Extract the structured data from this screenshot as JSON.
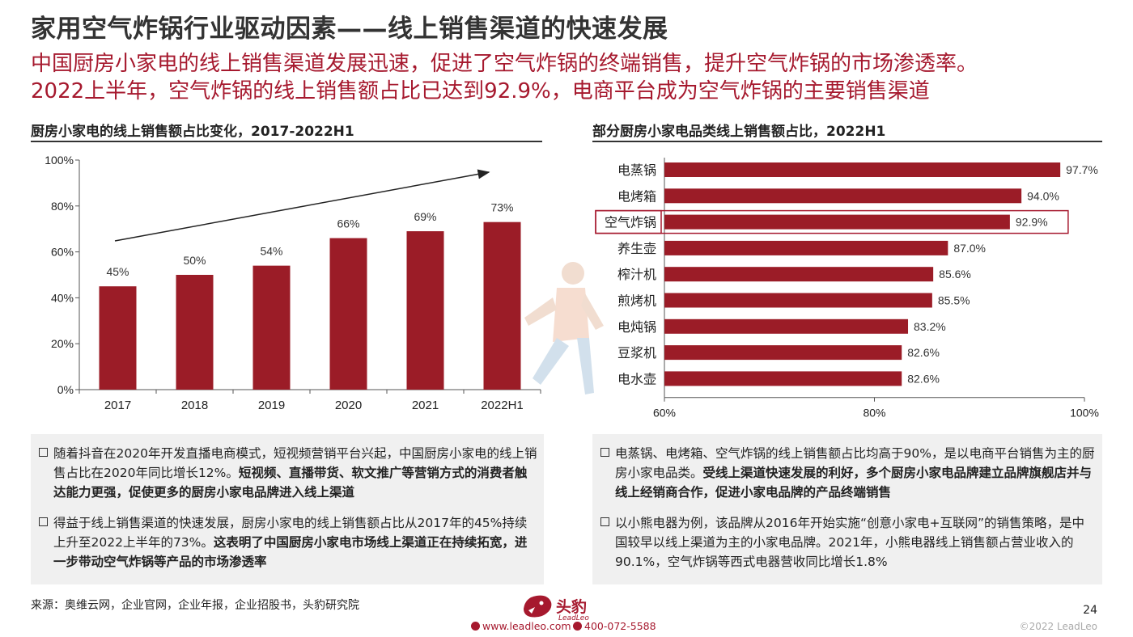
{
  "header": {
    "title": "家用空气炸锅行业驱动因素——线上销售渠道的快速发展",
    "subtitle_line1": "中国厨房小家电的线上销售渠道发展迅速，促进了空气炸锅的终端销售，提升空气炸锅的市场渗透率。",
    "subtitle_line2": "2022上半年，空气炸锅的线上销售额占比已达到92.9%，电商平台成为空气炸锅的主要销售渠道"
  },
  "chart_data": [
    {
      "type": "bar",
      "title": "厨房小家电的线上销售额占比变化，2017-2022H1",
      "categories": [
        "2017",
        "2018",
        "2019",
        "2020",
        "2021",
        "2022H1"
      ],
      "values": [
        45,
        50,
        54,
        66,
        69,
        73
      ],
      "value_labels": [
        "45%",
        "50%",
        "54%",
        "66%",
        "69%",
        "73%"
      ],
      "ylim": [
        0,
        100
      ],
      "yticks": [
        "0%",
        "20%",
        "40%",
        "60%",
        "80%",
        "100%"
      ],
      "ytick_values": [
        0,
        20,
        40,
        60,
        80,
        100
      ],
      "bar_color": "#9b1c27",
      "trend_arrow": true
    },
    {
      "type": "bar",
      "orientation": "horizontal",
      "title": "部分厨房小家电品类线上销售额占比，2022H1",
      "categories": [
        "电蒸锅",
        "电烤箱",
        "空气炸锅",
        "养生壶",
        "榨汁机",
        "煎烤机",
        "电炖锅",
        "豆浆机",
        "电水壶"
      ],
      "values": [
        97.7,
        94.0,
        92.9,
        87.0,
        85.6,
        85.5,
        83.2,
        82.6,
        82.6
      ],
      "value_labels": [
        "97.7%",
        "94.0%",
        "92.9%",
        "87.0%",
        "85.6%",
        "85.5%",
        "83.2%",
        "82.6%",
        "82.6%"
      ],
      "xlim": [
        60,
        100
      ],
      "xticks": [
        "60%",
        "80%",
        "100%"
      ],
      "xtick_values": [
        60,
        80,
        100
      ],
      "highlight": "空气炸锅",
      "bar_color": "#9b1c27"
    }
  ],
  "left_panel": {
    "bullets": [
      {
        "plain": "随着抖音在2020年开发直播电商模式，短视频营销平台兴起，中国厨房小家电的线上销售占比在2020年同比增长12%。",
        "bold": "短视频、直播带货、软文推广等营销方式的消费者触达能力更强，促使更多的厨房小家电品牌进入线上渠道"
      },
      {
        "plain": "得益于线上销售渠道的快速发展，厨房小家电的线上销售额占比从2017年的45%持续上升至2022上半年的73%。",
        "bold": "这表明了中国厨房小家电市场线上渠道正在持续拓宽，进一步带动空气炸锅等产品的市场渗透率"
      }
    ]
  },
  "right_panel": {
    "bullets": [
      {
        "plain": "电蒸锅、电烤箱、空气炸锅的线上销售额占比均高于90%，是以电商平台销售为主的厨房小家电品类。",
        "bold": "受线上渠道快速发展的利好，多个厨房小家电品牌建立品牌旗舰店并与线上经销商合作，促进小家电品牌的产品终端销售"
      },
      {
        "plain": "以小熊电器为例，该品牌从2016年开始实施“创意小家电+互联网”的销售策略，是中国较早以线上渠道为主的小家电品牌。2021年，小熊电器线上销售额占营业收入的90.1%，空气炸锅等西式电器营收同比增长1.8%",
        "bold": ""
      }
    ]
  },
  "footer": {
    "source": "来源：奥维云网，企业官网，企业年报，企业招股书，头豹研究院",
    "logo_text": "头豹",
    "logo_sub": "LeadLeo",
    "website": "www.leadleo.com",
    "phone": "400-072-5588",
    "page_number": "24",
    "copyright": "©2022 LeadLeo"
  },
  "colors": {
    "accent": "#a6192e",
    "bar": "#9b1c27",
    "panel_bg": "#f0f0f0"
  }
}
